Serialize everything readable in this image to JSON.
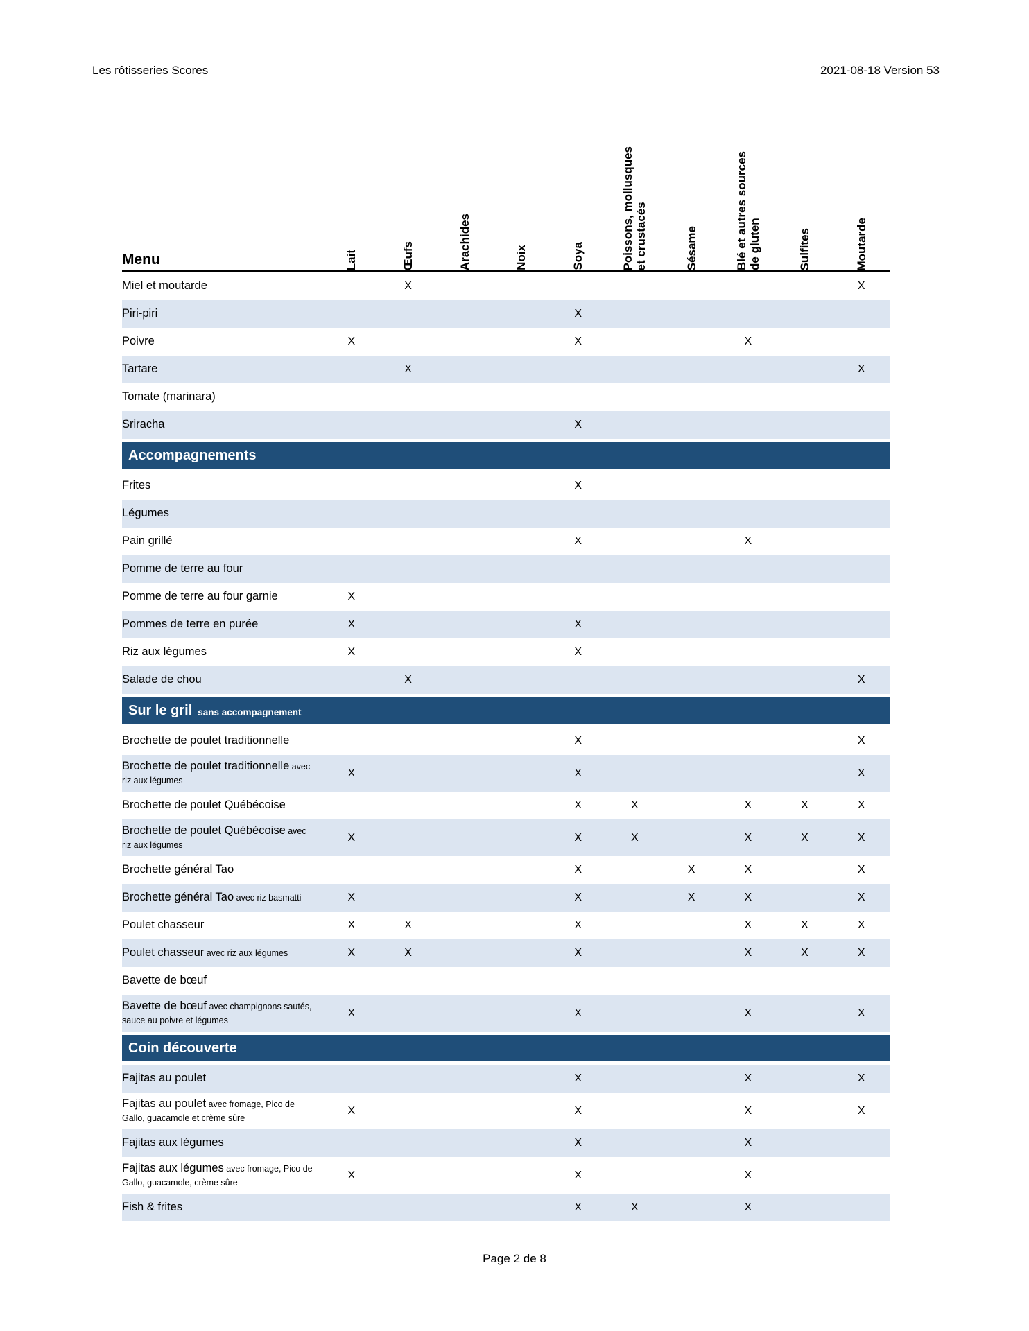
{
  "page_header": {
    "title": "Les rôtisseries Scores",
    "version": "2021-08-18 Version 53"
  },
  "table": {
    "menu_header": "Menu",
    "mark": "X",
    "columns": [
      "Lait",
      "Œufs",
      "Arachides",
      "Noix",
      "Soya",
      "Poissons, mollusques\net crustacés",
      "Sésame",
      "Blé et autres sources\nde gluten",
      "Sulfites",
      "Moutarde"
    ],
    "rows": [
      {
        "type": "item",
        "name": "Miel et moutarde",
        "suffix": "",
        "marks": [
          1,
          9
        ],
        "shaded": false,
        "tall": false
      },
      {
        "type": "item",
        "name": "Piri-piri",
        "suffix": "",
        "marks": [
          4
        ],
        "shaded": true,
        "tall": false
      },
      {
        "type": "item",
        "name": "Poivre",
        "suffix": "",
        "marks": [
          0,
          4,
          7
        ],
        "shaded": false,
        "tall": false
      },
      {
        "type": "item",
        "name": "Tartare",
        "suffix": "",
        "marks": [
          1,
          9
        ],
        "shaded": true,
        "tall": false
      },
      {
        "type": "item",
        "name": "Tomate (marinara)",
        "suffix": "",
        "marks": [],
        "shaded": false,
        "tall": false
      },
      {
        "type": "item",
        "name": "Sriracha",
        "suffix": "",
        "marks": [
          4
        ],
        "shaded": true,
        "tall": false
      },
      {
        "type": "section",
        "title": "Accompagnements",
        "subtitle": ""
      },
      {
        "type": "item",
        "name": "Frites",
        "suffix": "",
        "marks": [
          4
        ],
        "shaded": false,
        "tall": false
      },
      {
        "type": "item",
        "name": "Légumes",
        "suffix": "",
        "marks": [],
        "shaded": true,
        "tall": false
      },
      {
        "type": "item",
        "name": "Pain grillé",
        "suffix": "",
        "marks": [
          4,
          7
        ],
        "shaded": false,
        "tall": false
      },
      {
        "type": "item",
        "name": "Pomme de terre au four",
        "suffix": "",
        "marks": [],
        "shaded": true,
        "tall": false
      },
      {
        "type": "item",
        "name": "Pomme de terre au four garnie",
        "suffix": "",
        "marks": [
          0
        ],
        "shaded": false,
        "tall": false
      },
      {
        "type": "item",
        "name": "Pommes de terre en purée",
        "suffix": "",
        "marks": [
          0,
          4
        ],
        "shaded": true,
        "tall": false
      },
      {
        "type": "item",
        "name": "Riz aux légumes",
        "suffix": "",
        "marks": [
          0,
          4
        ],
        "shaded": false,
        "tall": false
      },
      {
        "type": "item",
        "name": "Salade de chou",
        "suffix": "",
        "marks": [
          1,
          9
        ],
        "shaded": true,
        "tall": false
      },
      {
        "type": "section",
        "title": "Sur le gril",
        "subtitle": "sans accompagnement"
      },
      {
        "type": "item",
        "name": "Brochette de poulet traditionnelle",
        "suffix": "",
        "marks": [
          4,
          9
        ],
        "shaded": false,
        "tall": false
      },
      {
        "type": "item",
        "name": "Brochette de poulet traditionnelle",
        "suffix": "avec riz aux légumes",
        "marks": [
          0,
          4,
          9
        ],
        "shaded": true,
        "tall": true
      },
      {
        "type": "item",
        "name": "Brochette de poulet Québécoise",
        "suffix": "",
        "marks": [
          4,
          5,
          7,
          8,
          9
        ],
        "shaded": false,
        "tall": false
      },
      {
        "type": "item",
        "name": "Brochette de poulet Québécoise",
        "suffix": "avec riz aux légumes",
        "marks": [
          0,
          4,
          5,
          7,
          8,
          9
        ],
        "shaded": true,
        "tall": true
      },
      {
        "type": "item",
        "name": "Brochette général Tao",
        "suffix": "",
        "marks": [
          4,
          6,
          7,
          9
        ],
        "shaded": false,
        "tall": false
      },
      {
        "type": "item",
        "name": "Brochette général Tao",
        "suffix": "avec riz basmatti",
        "marks": [
          0,
          4,
          6,
          7,
          9
        ],
        "shaded": true,
        "tall": false
      },
      {
        "type": "item",
        "name": "Poulet chasseur",
        "suffix": "",
        "marks": [
          0,
          1,
          4,
          7,
          8,
          9
        ],
        "shaded": false,
        "tall": false
      },
      {
        "type": "item",
        "name": "Poulet chasseur",
        "suffix": "avec riz aux légumes",
        "marks": [
          0,
          1,
          4,
          7,
          8,
          9
        ],
        "shaded": true,
        "tall": false
      },
      {
        "type": "item",
        "name": "Bavette de bœuf",
        "suffix": "",
        "marks": [],
        "shaded": false,
        "tall": false
      },
      {
        "type": "item",
        "name": "Bavette de bœuf",
        "suffix": "avec champignons sautés, sauce au poivre et légumes",
        "marks": [
          0,
          4,
          7,
          9
        ],
        "shaded": true,
        "tall": true
      },
      {
        "type": "section",
        "title": "Coin découverte",
        "subtitle": ""
      },
      {
        "type": "item",
        "name": "Fajitas au poulet",
        "suffix": "",
        "marks": [
          4,
          7,
          9
        ],
        "shaded": true,
        "tall": false
      },
      {
        "type": "item",
        "name": "Fajitas au poulet",
        "suffix": "avec fromage, Pico de Gallo, guacamole et crème sûre",
        "marks": [
          0,
          4,
          7,
          9
        ],
        "shaded": false,
        "tall": true
      },
      {
        "type": "item",
        "name": "Fajitas aux légumes",
        "suffix": "",
        "marks": [
          4,
          7
        ],
        "shaded": true,
        "tall": false
      },
      {
        "type": "item",
        "name": "Fajitas aux légumes",
        "suffix": "avec fromage, Pico de Gallo, guacamole, crème sûre",
        "marks": [
          0,
          4,
          7
        ],
        "shaded": false,
        "tall": true
      },
      {
        "type": "item",
        "name": "Fish & frites",
        "suffix": "",
        "marks": [
          4,
          5,
          7
        ],
        "shaded": true,
        "tall": false
      }
    ]
  },
  "footer": {
    "page_label": "Page 2 de 8"
  },
  "colors": {
    "section_bg": "#1F4E79",
    "row_shaded_bg": "#DCE5F1",
    "text": "#000000"
  }
}
